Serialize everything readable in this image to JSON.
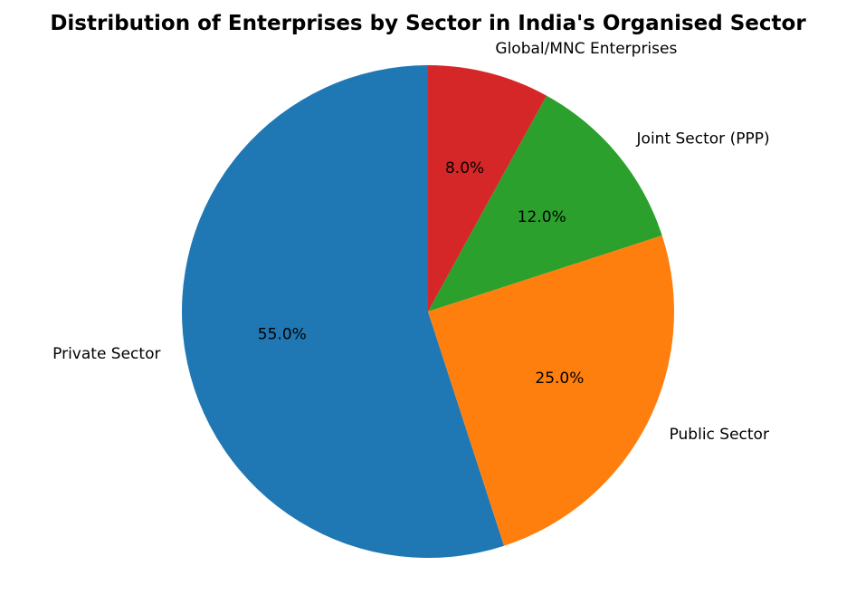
{
  "chart_data": {
    "type": "pie",
    "title": "Distribution of Enterprises by Sector in India's Organised Sector",
    "start_angle_deg": 90,
    "direction": "counterclockwise",
    "slices": [
      {
        "label": "Private Sector",
        "value": 55.0,
        "pct_label": "55.0%",
        "color": "#1f77b4"
      },
      {
        "label": "Public Sector",
        "value": 25.0,
        "pct_label": "25.0%",
        "color": "#ff7f0e"
      },
      {
        "label": "Joint Sector (PPP)",
        "value": 12.0,
        "pct_label": "12.0%",
        "color": "#2ca02c"
      },
      {
        "label": "Global/MNC Enterprises",
        "value": 8.0,
        "pct_label": "8.0%",
        "color": "#d62728"
      }
    ]
  }
}
